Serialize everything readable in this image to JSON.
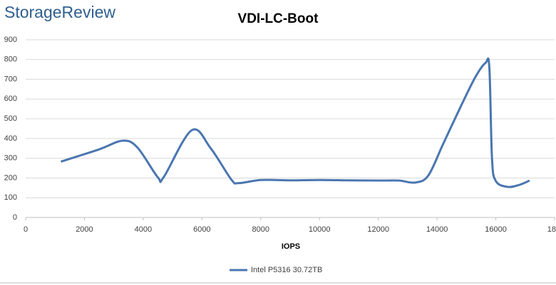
{
  "chart_data": {
    "type": "line",
    "logo": "StorageReview",
    "title": "VDI-LC-Boot",
    "x_label": "IOPS",
    "xlim": [
      0,
      18000
    ],
    "xticks": [
      0,
      2000,
      4000,
      6000,
      8000,
      10000,
      12000,
      14000,
      16000,
      {
        "value": 18000,
        "label": "18"
      }
    ],
    "ylim": [
      0,
      900
    ],
    "yticks": [
      0,
      100,
      200,
      300,
      400,
      500,
      600,
      700,
      800,
      900
    ],
    "grid": true,
    "legend": "bottom",
    "series": [
      {
        "name": "Intel P5316 30.72TB",
        "color": "#4a76b0",
        "x": [
          1200,
          2500,
          3300,
          3800,
          4500,
          4700,
          5650,
          6300,
          7000,
          7250,
          8000,
          9000,
          10000,
          11000,
          12000,
          12700,
          13250,
          13700,
          14200,
          14800,
          15300,
          15650,
          15780,
          15870,
          16000,
          16400,
          16800,
          17150
        ],
        "values": [
          283,
          345,
          389,
          355,
          203,
          205,
          442,
          350,
          192,
          174,
          190,
          188,
          190,
          188,
          187,
          187,
          177,
          212,
          370,
          560,
          710,
          783,
          760,
          300,
          185,
          155,
          165,
          187
        ]
      }
    ]
  }
}
